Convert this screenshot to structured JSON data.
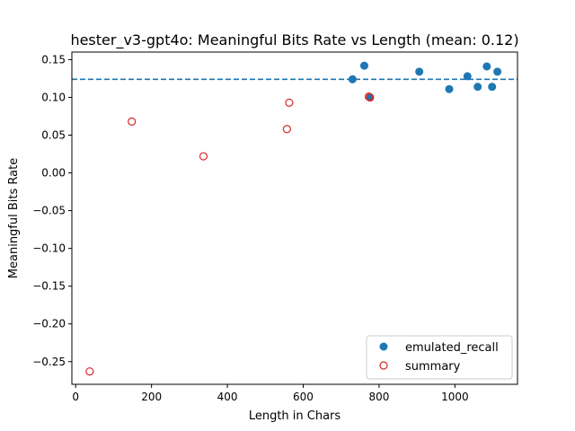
{
  "chart_data": {
    "type": "scatter",
    "title": "hester_v3-gpt4o: Meaningful Bits Rate vs Length (mean: 0.12)",
    "xlabel": "Length in Chars",
    "ylabel": "Meaningful Bits Rate",
    "xlim": [
      -10,
      1165
    ],
    "ylim": [
      -0.28,
      0.16
    ],
    "xticks": [
      0,
      200,
      400,
      600,
      800,
      1000
    ],
    "xtick_labels": [
      "0",
      "200",
      "400",
      "600",
      "800",
      "1000"
    ],
    "yticks": [
      -0.25,
      -0.2,
      -0.15,
      -0.1,
      -0.05,
      0.0,
      0.05,
      0.1,
      0.15
    ],
    "ytick_labels": [
      "−0.25",
      "−0.20",
      "−0.15",
      "−0.10",
      "−0.05",
      "0.00",
      "0.05",
      "0.10",
      "0.15"
    ],
    "grid": false,
    "legend_position": "bottom-right",
    "mean_line": {
      "y": 0.124,
      "style": "dashed",
      "color": "#1f77b4"
    },
    "series": [
      {
        "name": "emulated_recall",
        "marker": "filled-circle",
        "color": "#1f77b4",
        "points": [
          [
            730,
            0.124
          ],
          [
            761,
            0.142
          ],
          [
            776,
            0.1
          ],
          [
            906,
            0.134
          ],
          [
            985,
            0.111
          ],
          [
            1033,
            0.128
          ],
          [
            1060,
            0.114
          ],
          [
            1084,
            0.141
          ],
          [
            1098,
            0.114
          ],
          [
            1112,
            0.134
          ]
        ]
      },
      {
        "name": "summary",
        "marker": "hollow-circle",
        "color": "#d62728",
        "points": [
          [
            37,
            -0.263
          ],
          [
            148,
            0.068
          ],
          [
            337,
            0.022
          ],
          [
            557,
            0.058
          ],
          [
            563,
            0.093
          ],
          [
            773,
            0.101
          ],
          [
            776,
            0.1
          ]
        ]
      }
    ]
  }
}
